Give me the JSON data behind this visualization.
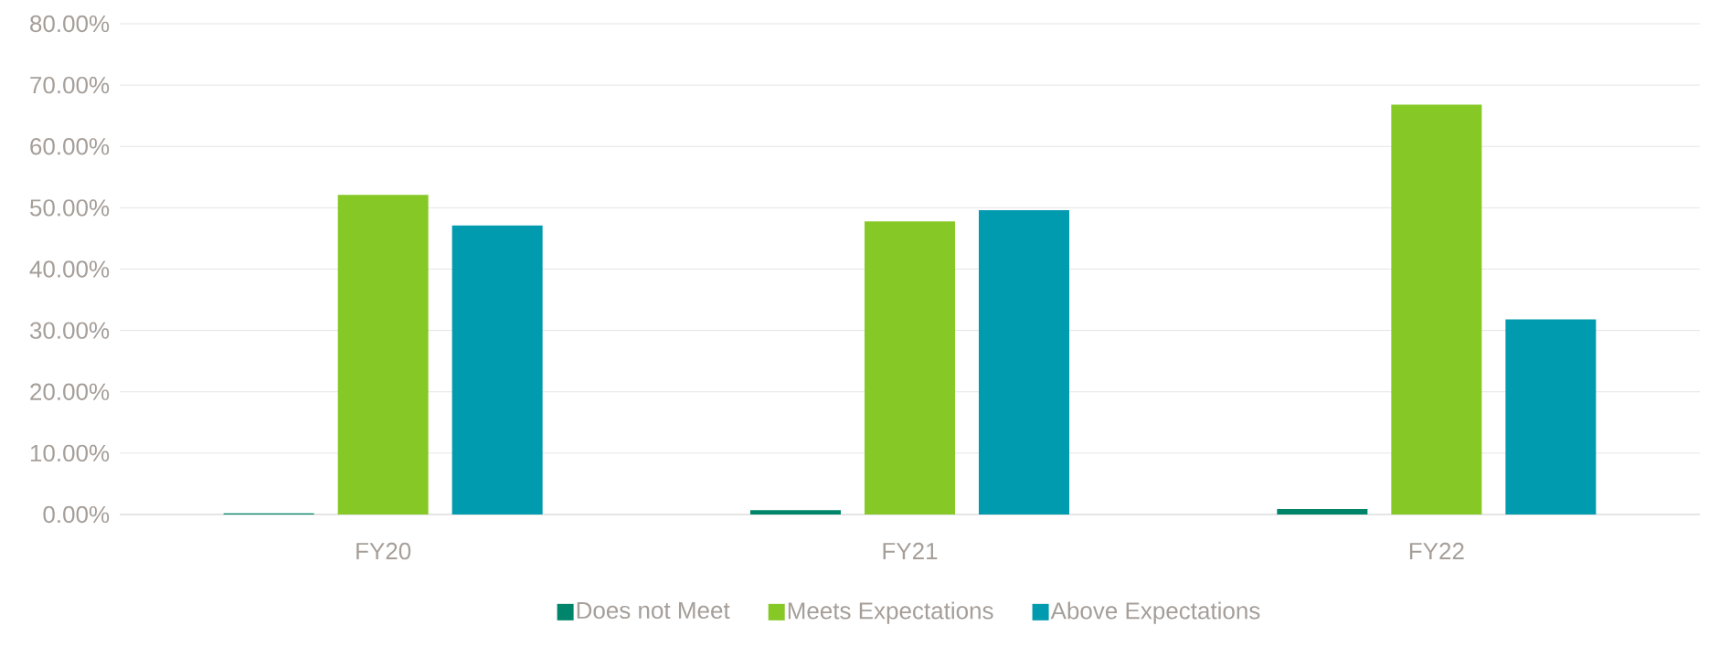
{
  "chart_data": {
    "type": "bar",
    "categories": [
      "FY20",
      "FY21",
      "FY22"
    ],
    "series": [
      {
        "name": "Does not Meet",
        "color": "#00856a",
        "values": [
          0.2,
          0.7,
          0.9
        ]
      },
      {
        "name": "Meets Expectations",
        "color": "#86c926",
        "values": [
          52.1,
          47.8,
          66.8
        ]
      },
      {
        "name": "Above Expectations",
        "color": "#009baf",
        "values": [
          47.1,
          49.6,
          31.8
        ]
      }
    ],
    "ylim": [
      0,
      80
    ],
    "yticks": [
      {
        "value": 0,
        "label": "0.00%"
      },
      {
        "value": 10,
        "label": "10.00%"
      },
      {
        "value": 20,
        "label": "20.00%"
      },
      {
        "value": 30,
        "label": "30.00%"
      },
      {
        "value": 40,
        "label": "40.00%"
      },
      {
        "value": 50,
        "label": "50.00%"
      },
      {
        "value": 60,
        "label": "60.00%"
      },
      {
        "value": 70,
        "label": "70.00%"
      },
      {
        "value": 80,
        "label": "80.00%"
      }
    ],
    "grid": "y",
    "legend": "bottom"
  }
}
